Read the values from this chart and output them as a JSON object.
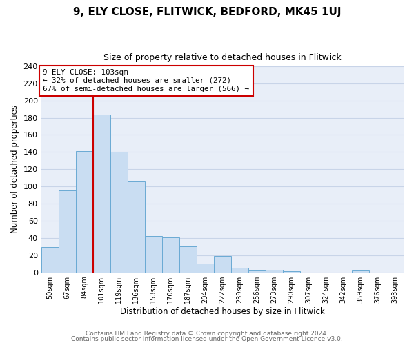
{
  "title": "9, ELY CLOSE, FLITWICK, BEDFORD, MK45 1UJ",
  "subtitle": "Size of property relative to detached houses in Flitwick",
  "xlabel": "Distribution of detached houses by size in Flitwick",
  "ylabel": "Number of detached properties",
  "bar_labels": [
    "50sqm",
    "67sqm",
    "84sqm",
    "101sqm",
    "119sqm",
    "136sqm",
    "153sqm",
    "170sqm",
    "187sqm",
    "204sqm",
    "222sqm",
    "239sqm",
    "256sqm",
    "273sqm",
    "290sqm",
    "307sqm",
    "324sqm",
    "342sqm",
    "359sqm",
    "376sqm",
    "393sqm"
  ],
  "bar_heights": [
    29,
    95,
    141,
    184,
    140,
    106,
    42,
    41,
    30,
    10,
    19,
    5,
    2,
    3,
    1,
    0,
    0,
    0,
    2,
    0,
    0
  ],
  "bar_color": "#c9ddf2",
  "bar_edge_color": "#6aaad4",
  "ylim": [
    0,
    240
  ],
  "yticks": [
    0,
    20,
    40,
    60,
    80,
    100,
    120,
    140,
    160,
    180,
    200,
    220,
    240
  ],
  "vline_x_index": 3,
  "vline_color": "#cc0000",
  "annotation_line1": "9 ELY CLOSE: 103sqm",
  "annotation_line2": "← 32% of detached houses are smaller (272)",
  "annotation_line3": "67% of semi-detached houses are larger (566) →",
  "annotation_box_color": "#ffffff",
  "annotation_box_edge": "#cc0000",
  "footer1": "Contains HM Land Registry data © Crown copyright and database right 2024.",
  "footer2": "Contains public sector information licensed under the Open Government Licence v3.0.",
  "fig_bg_color": "#ffffff",
  "plot_bg_color": "#e8eef8",
  "grid_color": "#c8d4e8"
}
